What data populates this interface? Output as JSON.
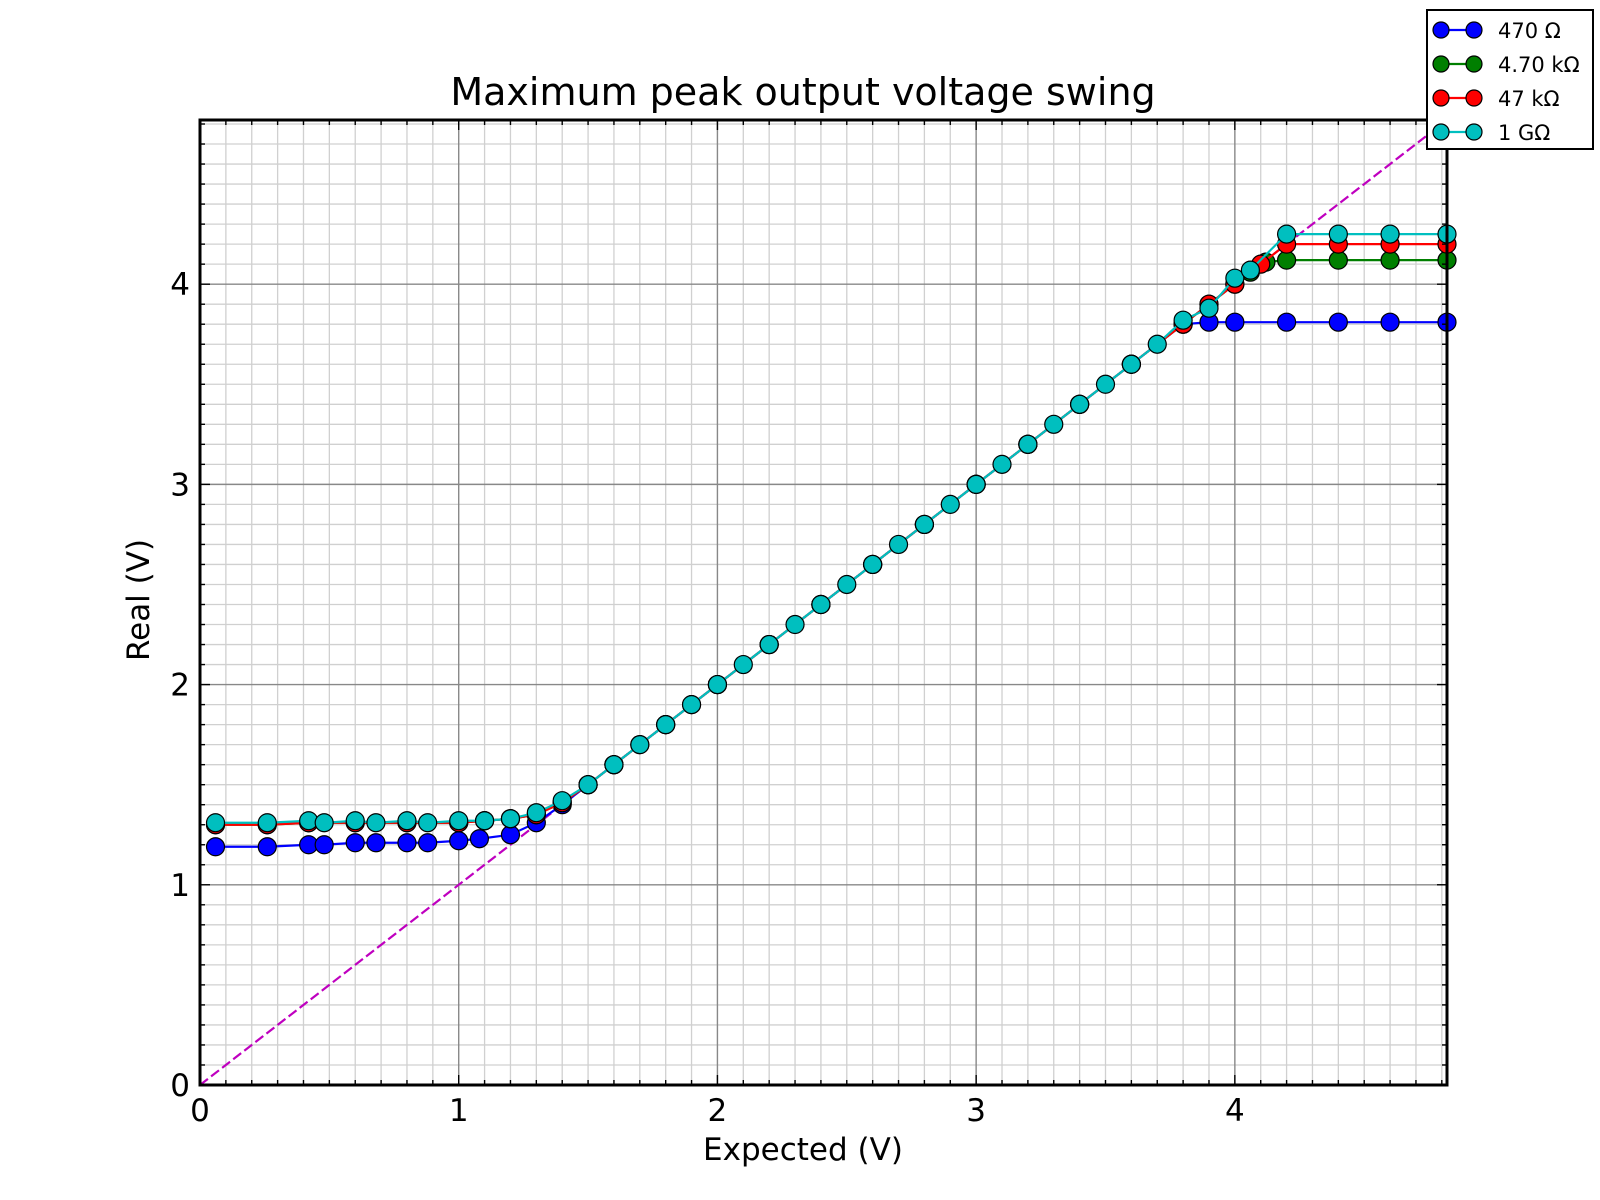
{
  "chart_data": {
    "type": "line",
    "title": "Maximum peak output voltage swing",
    "xlabel": "Expected (V)",
    "ylabel": "Real (V)",
    "xlim": [
      0,
      4.82
    ],
    "ylim": [
      0,
      4.82
    ],
    "x_ticks": [
      0,
      1,
      2,
      3,
      4
    ],
    "y_ticks": [
      0,
      1,
      2,
      3,
      4
    ],
    "x_tick_labels": [
      "0",
      "1",
      "2",
      "3",
      "4"
    ],
    "y_tick_labels": [
      "0",
      "1",
      "2",
      "3",
      "4"
    ],
    "grid": true,
    "minor_grid": true,
    "legend_position": "top-right",
    "reference_line": {
      "label": "",
      "color": "#bf00bf",
      "style": "dashed",
      "x": [
        0,
        4.82
      ],
      "y": [
        0,
        4.82
      ]
    },
    "series": [
      {
        "name": "470 Ω",
        "color": "#0000ff",
        "x": [
          0.06,
          0.26,
          0.42,
          0.48,
          0.6,
          0.68,
          0.8,
          0.88,
          1.0,
          1.08,
          1.2,
          1.3,
          1.4,
          1.5,
          1.6,
          1.7,
          1.8,
          1.9,
          2.0,
          2.2,
          2.4,
          2.6,
          2.8,
          3.0,
          3.2,
          3.4,
          3.6,
          3.8,
          3.9,
          4.0,
          4.2,
          4.4,
          4.6,
          4.82
        ],
        "y": [
          1.19,
          1.19,
          1.2,
          1.2,
          1.21,
          1.21,
          1.21,
          1.21,
          1.22,
          1.23,
          1.25,
          1.31,
          1.4,
          1.5,
          1.6,
          1.7,
          1.8,
          1.9,
          2.0,
          2.2,
          2.4,
          2.6,
          2.8,
          3.0,
          3.2,
          3.4,
          3.6,
          3.8,
          3.81,
          3.81,
          3.81,
          3.81,
          3.81,
          3.81
        ]
      },
      {
        "name": "4.70 kΩ",
        "color": "#007f00",
        "x": [
          0.06,
          0.26,
          0.42,
          0.6,
          0.8,
          1.0,
          1.1,
          1.2,
          1.3,
          1.4,
          1.5,
          1.6,
          1.8,
          2.0,
          2.2,
          2.4,
          2.6,
          2.8,
          3.0,
          3.2,
          3.4,
          3.6,
          3.8,
          3.9,
          4.0,
          4.06,
          4.12,
          4.2,
          4.4,
          4.6,
          4.82
        ],
        "y": [
          1.3,
          1.3,
          1.31,
          1.31,
          1.31,
          1.31,
          1.32,
          1.33,
          1.35,
          1.41,
          1.5,
          1.6,
          1.8,
          2.0,
          2.2,
          2.4,
          2.6,
          2.8,
          3.0,
          3.2,
          3.4,
          3.6,
          3.8,
          3.9,
          4.0,
          4.06,
          4.11,
          4.12,
          4.12,
          4.12,
          4.12
        ]
      },
      {
        "name": "47 kΩ",
        "color": "#ff0000",
        "x": [
          0.06,
          0.26,
          0.42,
          0.6,
          0.8,
          1.0,
          1.1,
          1.2,
          1.3,
          1.4,
          1.5,
          1.6,
          1.8,
          2.0,
          2.2,
          2.4,
          2.6,
          2.8,
          3.0,
          3.2,
          3.4,
          3.6,
          3.8,
          3.9,
          4.0,
          4.1,
          4.2,
          4.4,
          4.6,
          4.82
        ],
        "y": [
          1.3,
          1.3,
          1.31,
          1.31,
          1.31,
          1.31,
          1.32,
          1.33,
          1.35,
          1.41,
          1.5,
          1.6,
          1.8,
          2.0,
          2.2,
          2.4,
          2.6,
          2.8,
          3.0,
          3.2,
          3.4,
          3.6,
          3.8,
          3.9,
          4.0,
          4.1,
          4.2,
          4.2,
          4.2,
          4.2
        ]
      },
      {
        "name": "1 GΩ",
        "color": "#00bfbf",
        "x": [
          0.06,
          0.26,
          0.42,
          0.48,
          0.6,
          0.68,
          0.8,
          0.88,
          1.0,
          1.1,
          1.2,
          1.3,
          1.4,
          1.5,
          1.6,
          1.7,
          1.8,
          1.9,
          2.0,
          2.1,
          2.2,
          2.3,
          2.4,
          2.5,
          2.6,
          2.7,
          2.8,
          2.9,
          3.0,
          3.1,
          3.2,
          3.3,
          3.4,
          3.5,
          3.6,
          3.7,
          3.8,
          3.9,
          4.0,
          4.06,
          4.2,
          4.4,
          4.6,
          4.82
        ],
        "y": [
          1.31,
          1.31,
          1.32,
          1.31,
          1.32,
          1.31,
          1.32,
          1.31,
          1.32,
          1.32,
          1.33,
          1.36,
          1.42,
          1.5,
          1.6,
          1.7,
          1.8,
          1.9,
          2.0,
          2.1,
          2.2,
          2.3,
          2.4,
          2.5,
          2.6,
          2.7,
          2.8,
          2.9,
          3.0,
          3.1,
          3.2,
          3.3,
          3.4,
          3.5,
          3.6,
          3.7,
          3.82,
          3.88,
          4.03,
          4.07,
          4.25,
          4.25,
          4.25,
          4.25
        ]
      }
    ]
  }
}
